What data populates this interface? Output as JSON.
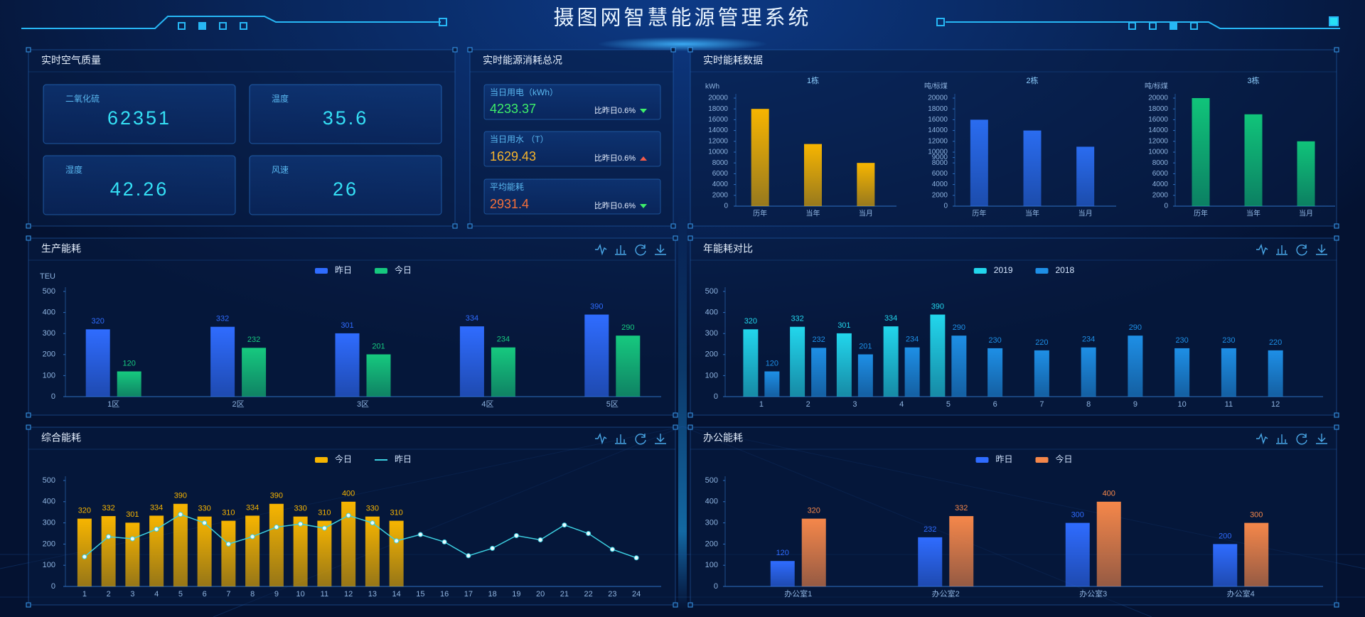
{
  "header": {
    "title": "摄图网智慧能源管理系统"
  },
  "air_quality": {
    "title": "实时空气质量",
    "items": [
      {
        "label": "二氧化硫",
        "value": 62351
      },
      {
        "label": "温度",
        "value": 35.6
      },
      {
        "label": "湿度",
        "value": 42.26
      },
      {
        "label": "风速",
        "value": 26
      }
    ]
  },
  "energy_summary": {
    "title": "实时能源消耗总况",
    "items": [
      {
        "label": "当日用电（kWh）",
        "value": 4233.37,
        "compare": "比昨日0.6%"
      },
      {
        "label": "当日用水 （T）",
        "value": 1629.43,
        "compare": "比昨日0.6%"
      },
      {
        "label": "平均能耗",
        "value": 2931.4,
        "compare": "比昨日0.6%"
      }
    ]
  },
  "realtime": {
    "title": "实时能耗数据"
  },
  "chart_data": [
    {
      "type": "bar",
      "title": "1栋",
      "y_label": "kWh",
      "categories": [
        "历年",
        "当年",
        "当月"
      ],
      "values": [
        18000,
        11500,
        8000
      ],
      "color": "#f7b500",
      "ylim": [
        0,
        20000
      ],
      "yticks": [
        0,
        2000,
        4000,
        6000,
        8000,
        10000,
        12000,
        14000,
        16000,
        18000,
        20000
      ]
    },
    {
      "type": "bar",
      "title": "2栋",
      "y_label": "吨/标煤",
      "categories": [
        "历年",
        "当年",
        "当月"
      ],
      "values": [
        16000,
        14000,
        11000
      ],
      "color": "#2a6cf0",
      "ylim": [
        0,
        20000
      ],
      "yticks": [
        0,
        2000,
        4000,
        6000,
        8000,
        9000,
        10000,
        12000,
        14000,
        16000,
        18000,
        20000
      ]
    },
    {
      "type": "bar",
      "title": "3栋",
      "y_label": "吨/标煤",
      "categories": [
        "历年",
        "当年",
        "当月"
      ],
      "values": [
        20000,
        17000,
        12000
      ],
      "color": "#10c47a",
      "ylim": [
        0,
        20000
      ],
      "yticks": [
        0,
        2000,
        4000,
        6000,
        8000,
        10000,
        12000,
        14000,
        16000,
        18000,
        20000
      ]
    },
    {
      "type": "bar",
      "title": "生产能耗",
      "y_label": "TEU",
      "categories": [
        "1区",
        "2区",
        "3区",
        "4区",
        "5区"
      ],
      "series": [
        {
          "name": "昨日",
          "color": "#2f6cff",
          "values": [
            320,
            332,
            301,
            334,
            390
          ]
        },
        {
          "name": "今日",
          "color": "#16c97f",
          "values": [
            120,
            232,
            201,
            234,
            290
          ]
        }
      ],
      "ylim": [
        0,
        500
      ],
      "yticks": [
        0,
        100,
        200,
        300,
        400,
        500
      ],
      "data_labels": true
    },
    {
      "type": "bar",
      "title": "年能耗对比",
      "categories": [
        1,
        2,
        3,
        4,
        5,
        6,
        7,
        8,
        9,
        10,
        11,
        12
      ],
      "series": [
        {
          "name": "2019",
          "color": "#22d6ec",
          "values": [
            320,
            332,
            301,
            334,
            390,
            null,
            null,
            null,
            null,
            null,
            null,
            null
          ]
        },
        {
          "name": "2018",
          "color": "#1e8fe6",
          "values": [
            120,
            232,
            201,
            234,
            290,
            230,
            220,
            234,
            290,
            230,
            230,
            220
          ]
        }
      ],
      "ylim": [
        0,
        500
      ],
      "yticks": [
        0,
        100,
        200,
        300,
        400,
        500
      ],
      "data_labels": true
    },
    {
      "type": "bar",
      "title": "综合能耗",
      "categories": [
        1,
        2,
        3,
        4,
        5,
        6,
        7,
        8,
        9,
        10,
        11,
        12,
        13,
        14,
        15,
        16,
        17,
        18,
        19,
        20,
        21,
        22,
        23,
        24
      ],
      "series": [
        {
          "name": "今日",
          "color": "#f7b500",
          "values": [
            320,
            332,
            301,
            334,
            390,
            330,
            310,
            334,
            390,
            330,
            310,
            400,
            330,
            310,
            null,
            null,
            null,
            null,
            null,
            null,
            null,
            null,
            null,
            null
          ]
        },
        {
          "name": "昨日",
          "color": "#3ccfe0",
          "type": "line",
          "values": [
            140,
            235,
            225,
            270,
            340,
            300,
            200,
            235,
            280,
            295,
            275,
            335,
            300,
            215,
            245,
            210,
            145,
            180,
            240,
            220,
            290,
            250,
            175,
            135
          ]
        }
      ],
      "ylim": [
        0,
        500
      ],
      "yticks": [
        0,
        100,
        200,
        300,
        400,
        500
      ],
      "data_labels": true
    },
    {
      "type": "bar",
      "title": "办公能耗",
      "categories": [
        "办公室1",
        "办公室2",
        "办公室3",
        "办公室4"
      ],
      "series": [
        {
          "name": "昨日",
          "color": "#2f6cff",
          "values": [
            120,
            232,
            300,
            200
          ]
        },
        {
          "name": "今日",
          "color": "#f5874a",
          "values": [
            320,
            332,
            400,
            300
          ]
        }
      ],
      "ylim": [
        0,
        500
      ],
      "yticks": [
        0,
        100,
        200,
        300,
        400,
        500
      ],
      "data_labels": true
    }
  ]
}
